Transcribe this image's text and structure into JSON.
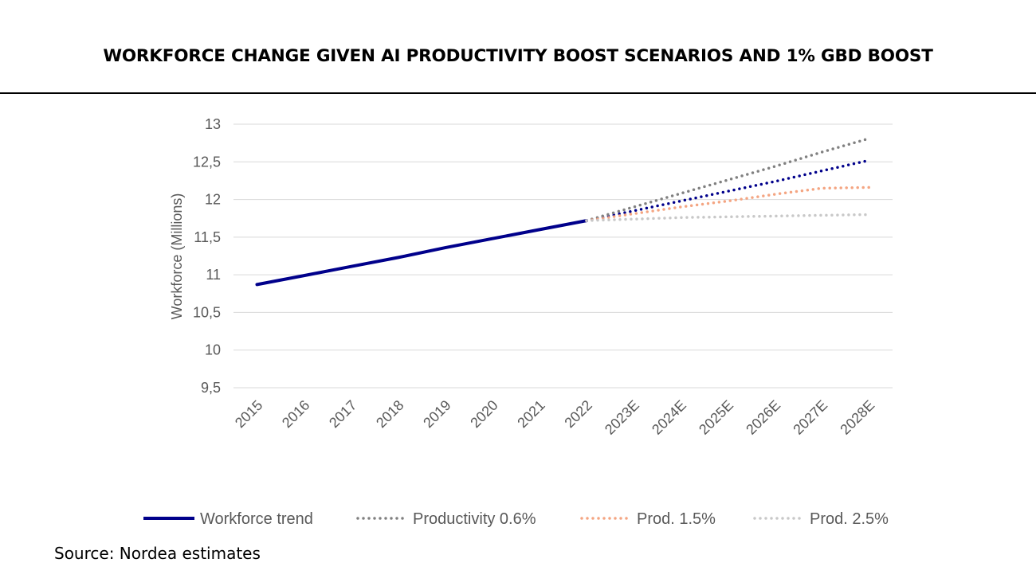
{
  "title": "WORKFORCE CHANGE GIVEN AI PRODUCTIVITY BOOST SCENARIOS AND 1% GBD BOOST",
  "source": "Source: Nordea estimates",
  "chart_data": {
    "type": "line",
    "title": "WORKFORCE CHANGE GIVEN AI PRODUCTIVITY BOOST SCENARIOS AND 1% GBD BOOST",
    "xlabel": "",
    "ylabel": "Workforce (Millions)",
    "categories": [
      "2015",
      "2016",
      "2017",
      "2018",
      "2019",
      "2020",
      "2021",
      "2022",
      "2023E",
      "2024E",
      "2025E",
      "2026E",
      "2027E",
      "2028E"
    ],
    "ylim": [
      9.5,
      13
    ],
    "yticks": [
      "9,5",
      "10",
      "10,5",
      "11",
      "11,5",
      "12",
      "12,5",
      "13"
    ],
    "ytick_values": [
      9.5,
      10,
      10.5,
      11,
      11.5,
      12,
      12.5,
      13
    ],
    "grid": true,
    "legend_position": "bottom",
    "series": [
      {
        "name": "Workforce trend",
        "style": "solid",
        "color": "#00008B",
        "values": [
          10.87,
          10.99,
          11.11,
          11.23,
          11.36,
          11.48,
          11.6,
          11.72,
          null,
          null,
          null,
          null,
          null,
          null
        ]
      },
      {
        "name": "",
        "style": "dotted",
        "color": "#00008B",
        "legend": false,
        "values": [
          null,
          null,
          null,
          null,
          null,
          null,
          null,
          11.72,
          11.85,
          11.98,
          12.11,
          12.24,
          12.38,
          12.52
        ]
      },
      {
        "name": "Productivity 0.6%",
        "style": "dotted",
        "color": "#808080",
        "values": [
          null,
          null,
          null,
          null,
          null,
          null,
          null,
          11.72,
          11.9,
          12.08,
          12.26,
          12.44,
          12.63,
          12.81
        ]
      },
      {
        "name": "Prod. 1.5%",
        "style": "dotted",
        "color": "#F4A582",
        "values": [
          null,
          null,
          null,
          null,
          null,
          null,
          null,
          11.72,
          11.81,
          11.9,
          11.98,
          12.07,
          12.15,
          12.16
        ]
      },
      {
        "name": "Prod. 2.5%",
        "style": "dotted",
        "color": "#C8C8C8",
        "values": [
          null,
          null,
          null,
          null,
          null,
          null,
          null,
          11.72,
          11.74,
          11.76,
          11.77,
          11.78,
          11.79,
          11.8
        ]
      }
    ]
  }
}
